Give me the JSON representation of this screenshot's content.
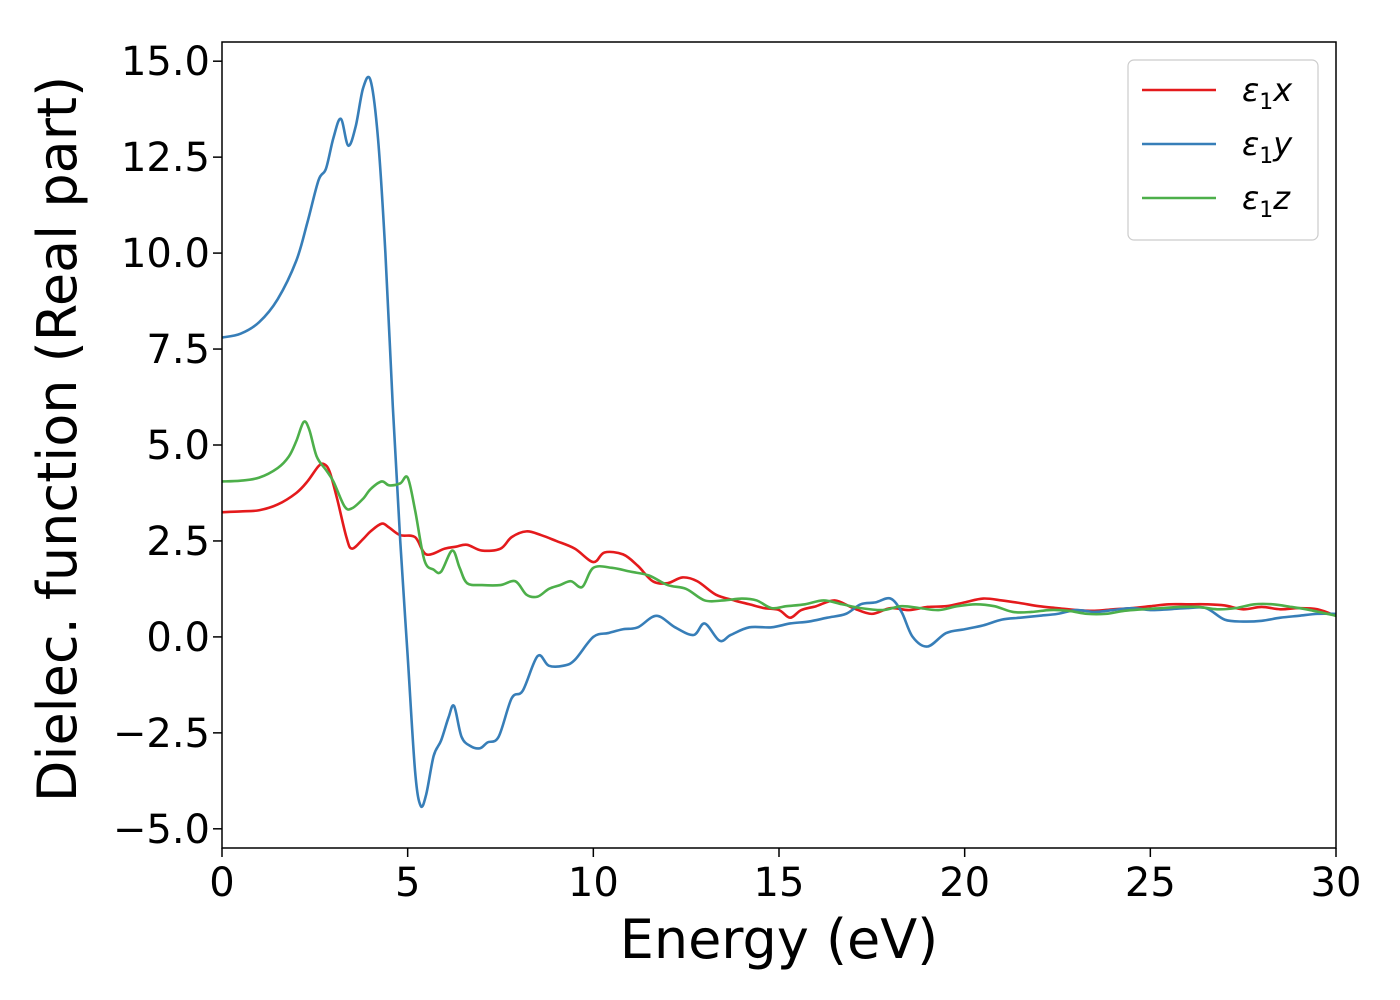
{
  "chart_data": {
    "type": "line",
    "title": "",
    "xlabel": "Energy (eV)",
    "ylabel": "Dielec. function (Real part)",
    "xlim": [
      0,
      30
    ],
    "ylim": [
      -5.5,
      15.5
    ],
    "xticks": [
      0,
      5,
      10,
      15,
      20,
      25,
      30
    ],
    "xtick_labels": [
      "0",
      "5",
      "10",
      "15",
      "20",
      "25",
      "30"
    ],
    "yticks": [
      -5.0,
      -2.5,
      0.0,
      2.5,
      5.0,
      7.5,
      10.0,
      12.5,
      15.0
    ],
    "ytick_labels": [
      "−5.0",
      "−2.5",
      "0.0",
      "2.5",
      "5.0",
      "7.5",
      "10.0",
      "12.5",
      "15.0"
    ],
    "grid": false,
    "legend_position": "top-right",
    "series": [
      {
        "name": "ε₁x",
        "label_base": "ε",
        "label_sub": "1",
        "label_var": "x",
        "color": "#e41a1c",
        "x": [
          0,
          0.5,
          1.0,
          1.5,
          2.0,
          2.3,
          2.6,
          2.75,
          2.9,
          3.1,
          3.35,
          3.5,
          3.8,
          4.0,
          4.3,
          4.5,
          4.8,
          5.2,
          5.5,
          6.0,
          6.3,
          6.6,
          7.0,
          7.5,
          7.8,
          8.2,
          8.6,
          9.0,
          9.5,
          10.0,
          10.3,
          10.8,
          11.2,
          11.6,
          12.0,
          12.4,
          12.8,
          13.3,
          13.8,
          14.2,
          14.6,
          15.0,
          15.3,
          15.6,
          16.0,
          16.5,
          17.0,
          17.5,
          18.0,
          18.5,
          19.0,
          19.5,
          20.0,
          20.5,
          21.0,
          21.5,
          22.0,
          22.5,
          23.0,
          23.5,
          24.0,
          24.5,
          25.0,
          25.5,
          26.0,
          26.5,
          27.0,
          27.5,
          28.0,
          28.5,
          29.0,
          29.5,
          30.0
        ],
        "y": [
          3.25,
          3.27,
          3.3,
          3.45,
          3.75,
          4.05,
          4.45,
          4.5,
          4.3,
          3.6,
          2.6,
          2.3,
          2.55,
          2.75,
          2.95,
          2.85,
          2.65,
          2.6,
          2.15,
          2.3,
          2.35,
          2.4,
          2.25,
          2.3,
          2.6,
          2.75,
          2.65,
          2.5,
          2.3,
          1.95,
          2.2,
          2.15,
          1.85,
          1.45,
          1.4,
          1.55,
          1.45,
          1.1,
          0.95,
          0.85,
          0.75,
          0.7,
          0.5,
          0.7,
          0.8,
          0.95,
          0.75,
          0.6,
          0.75,
          0.7,
          0.78,
          0.8,
          0.9,
          1.0,
          0.95,
          0.88,
          0.8,
          0.75,
          0.7,
          0.68,
          0.72,
          0.75,
          0.8,
          0.85,
          0.85,
          0.85,
          0.82,
          0.72,
          0.78,
          0.72,
          0.75,
          0.72,
          0.55
        ]
      },
      {
        "name": "ε₁y",
        "label_base": "ε",
        "label_sub": "1",
        "label_var": "y",
        "color": "#377eb8",
        "x": [
          0,
          0.5,
          1.0,
          1.5,
          2.0,
          2.3,
          2.6,
          2.8,
          3.0,
          3.2,
          3.4,
          3.6,
          3.8,
          4.0,
          4.2,
          4.4,
          4.6,
          4.8,
          5.0,
          5.2,
          5.35,
          5.5,
          5.7,
          5.9,
          6.1,
          6.25,
          6.45,
          6.7,
          6.95,
          7.15,
          7.45,
          7.8,
          8.1,
          8.5,
          8.8,
          9.2,
          9.5,
          10.0,
          10.4,
          10.8,
          11.2,
          11.7,
          12.2,
          12.7,
          13.0,
          13.4,
          13.7,
          14.2,
          14.8,
          15.3,
          15.8,
          16.3,
          16.8,
          17.2,
          17.6,
          18.0,
          18.3,
          18.6,
          19.0,
          19.5,
          20.0,
          20.5,
          21.0,
          21.5,
          22.0,
          22.5,
          23.0,
          23.5,
          24.0,
          24.5,
          25.0,
          25.5,
          26.0,
          26.5,
          27.0,
          27.5,
          28.0,
          28.5,
          29.0,
          29.5,
          30.0
        ],
        "y": [
          7.8,
          7.9,
          8.2,
          8.8,
          9.8,
          10.8,
          11.9,
          12.2,
          13.0,
          13.5,
          12.8,
          13.3,
          14.3,
          14.5,
          13.0,
          10.0,
          6.0,
          2.5,
          -0.5,
          -3.5,
          -4.4,
          -4.1,
          -3.1,
          -2.7,
          -2.1,
          -1.8,
          -2.6,
          -2.85,
          -2.9,
          -2.75,
          -2.6,
          -1.6,
          -1.4,
          -0.5,
          -0.75,
          -0.75,
          -0.6,
          0.0,
          0.1,
          0.2,
          0.25,
          0.55,
          0.25,
          0.05,
          0.35,
          -0.1,
          0.05,
          0.25,
          0.25,
          0.35,
          0.4,
          0.5,
          0.6,
          0.85,
          0.9,
          1.0,
          0.65,
          0.0,
          -0.25,
          0.1,
          0.2,
          0.3,
          0.45,
          0.5,
          0.55,
          0.6,
          0.7,
          0.65,
          0.7,
          0.75,
          0.7,
          0.72,
          0.75,
          0.75,
          0.45,
          0.4,
          0.42,
          0.5,
          0.55,
          0.6,
          0.6
        ]
      },
      {
        "name": "ε₁z",
        "label_base": "ε",
        "label_sub": "1",
        "label_var": "z",
        "color": "#4daf4a",
        "x": [
          0,
          0.5,
          1.0,
          1.5,
          1.8,
          2.0,
          2.2,
          2.35,
          2.55,
          2.8,
          3.0,
          3.3,
          3.5,
          3.8,
          4.0,
          4.3,
          4.5,
          4.8,
          5.0,
          5.2,
          5.45,
          5.7,
          5.9,
          6.2,
          6.4,
          6.6,
          7.0,
          7.5,
          7.9,
          8.2,
          8.5,
          8.8,
          9.1,
          9.4,
          9.7,
          10.0,
          10.5,
          11.0,
          11.5,
          12.0,
          12.5,
          13.0,
          13.5,
          14.0,
          14.4,
          14.8,
          15.2,
          15.7,
          16.2,
          16.7,
          17.2,
          17.8,
          18.3,
          18.8,
          19.3,
          19.8,
          20.3,
          20.8,
          21.3,
          21.8,
          22.3,
          22.8,
          23.3,
          23.8,
          24.3,
          24.8,
          25.3,
          25.8,
          26.3,
          26.8,
          27.3,
          27.8,
          28.3,
          28.8,
          29.3,
          30.0
        ],
        "y": [
          4.05,
          4.07,
          4.15,
          4.4,
          4.7,
          5.1,
          5.6,
          5.4,
          4.7,
          4.35,
          4.05,
          3.4,
          3.35,
          3.6,
          3.85,
          4.05,
          3.95,
          4.0,
          4.15,
          3.3,
          2.0,
          1.75,
          1.7,
          2.25,
          1.8,
          1.4,
          1.35,
          1.35,
          1.45,
          1.1,
          1.05,
          1.25,
          1.35,
          1.45,
          1.3,
          1.8,
          1.8,
          1.7,
          1.6,
          1.35,
          1.25,
          0.95,
          0.95,
          1.0,
          0.95,
          0.75,
          0.8,
          0.85,
          0.95,
          0.85,
          0.75,
          0.7,
          0.8,
          0.75,
          0.7,
          0.8,
          0.85,
          0.8,
          0.65,
          0.65,
          0.7,
          0.68,
          0.6,
          0.6,
          0.68,
          0.72,
          0.75,
          0.78,
          0.78,
          0.72,
          0.75,
          0.85,
          0.85,
          0.78,
          0.7,
          0.55
        ]
      }
    ]
  }
}
